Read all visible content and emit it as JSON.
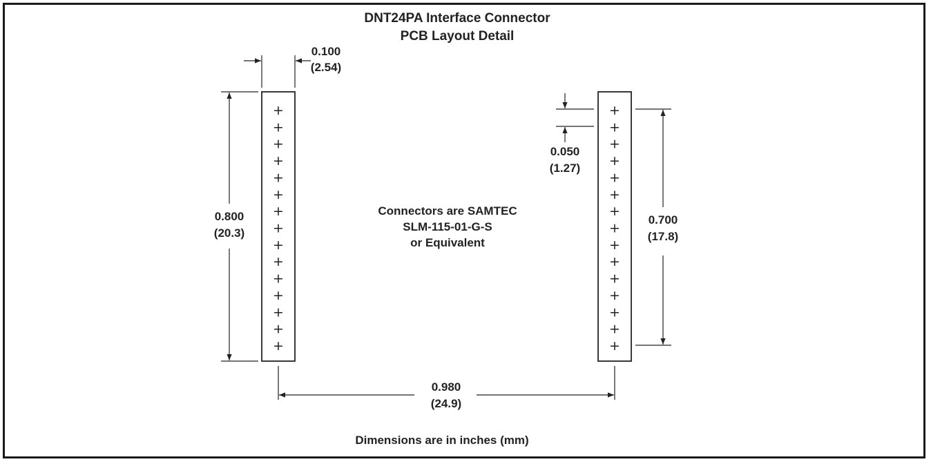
{
  "title": {
    "line1": "DNT24PA Interface Connector",
    "line2": "PCB Layout Detail"
  },
  "dimensions": {
    "pin_width": {
      "inches": "0.100",
      "mm": "(2.54)"
    },
    "left_height": {
      "inches": "0.800",
      "mm": "(20.3)"
    },
    "pin_pitch": {
      "inches": "0.050",
      "mm": "(1.27)"
    },
    "right_height": {
      "inches": "0.700",
      "mm": "(17.8)"
    },
    "spacing": {
      "inches": "0.980",
      "mm": "(24.9)"
    }
  },
  "connector_note": {
    "line1": "Connectors are SAMTEC",
    "line2": "SLM-115-01-G-S",
    "line3": "or Equivalent"
  },
  "footer_note": "Dimensions are in inches (mm)",
  "connectors": {
    "pin_count": 15,
    "pin_glyph": "+"
  }
}
